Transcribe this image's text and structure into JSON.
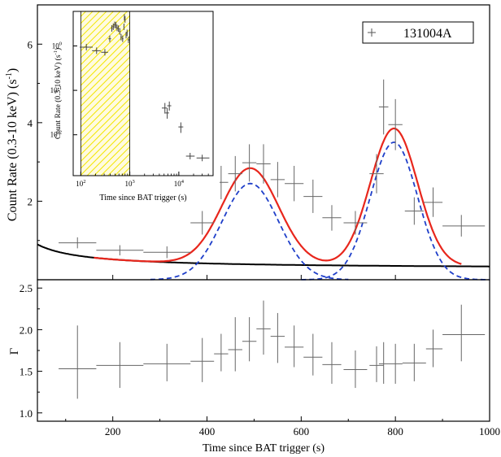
{
  "chart_data": [
    {
      "type": "line",
      "panel": "top",
      "ylabel": "Count Rate (0.3-10 keV) (s",
      "ylabel_sup": "-1",
      "ylabel_end": ")",
      "xlim": [
        40,
        1000
      ],
      "ylim": [
        0,
        7
      ],
      "yticks": [
        2,
        4,
        6
      ],
      "ytick_labels": [
        "2",
        "4",
        "6"
      ],
      "legend": {
        "label": "131004A",
        "marker": "+",
        "placement": "top-right"
      },
      "data_points": [
        {
          "x": 125,
          "y": 0.94,
          "xerr": [
            85,
            165
          ],
          "yerr": [
            0.8,
            1.08
          ]
        },
        {
          "x": 215,
          "y": 0.75,
          "xerr": [
            165,
            265
          ],
          "yerr": [
            0.62,
            0.88
          ]
        },
        {
          "x": 315,
          "y": 0.7,
          "xerr": [
            265,
            365
          ],
          "yerr": [
            0.55,
            0.85
          ]
        },
        {
          "x": 390,
          "y": 1.45,
          "xerr": [
            365,
            415
          ],
          "yerr": [
            1.15,
            1.75
          ]
        },
        {
          "x": 430,
          "y": 2.48,
          "xerr": [
            415,
            445
          ],
          "yerr": [
            2.05,
            2.9
          ]
        },
        {
          "x": 460,
          "y": 2.7,
          "xerr": [
            445,
            475
          ],
          "yerr": [
            2.25,
            3.15
          ]
        },
        {
          "x": 490,
          "y": 2.98,
          "xerr": [
            475,
            505
          ],
          "yerr": [
            2.5,
            3.45
          ]
        },
        {
          "x": 520,
          "y": 2.95,
          "xerr": [
            505,
            535
          ],
          "yerr": [
            2.45,
            3.45
          ]
        },
        {
          "x": 550,
          "y": 2.55,
          "xerr": [
            535,
            565
          ],
          "yerr": [
            2.1,
            3.0
          ]
        },
        {
          "x": 585,
          "y": 2.45,
          "xerr": [
            565,
            605
          ],
          "yerr": [
            2.0,
            2.9
          ]
        },
        {
          "x": 625,
          "y": 2.12,
          "xerr": [
            605,
            645
          ],
          "yerr": [
            1.7,
            2.55
          ]
        },
        {
          "x": 665,
          "y": 1.58,
          "xerr": [
            645,
            685
          ],
          "yerr": [
            1.25,
            1.9
          ]
        },
        {
          "x": 715,
          "y": 1.45,
          "xerr": [
            690,
            740
          ],
          "yerr": [
            1.15,
            1.75
          ]
        },
        {
          "x": 760,
          "y": 2.7,
          "xerr": [
            745,
            775
          ],
          "yerr": [
            2.2,
            3.2
          ]
        },
        {
          "x": 775,
          "y": 4.4,
          "xerr": [
            765,
            785
          ],
          "yerr": [
            3.7,
            5.1
          ]
        },
        {
          "x": 800,
          "y": 3.95,
          "xerr": [
            785,
            815
          ],
          "yerr": [
            3.3,
            4.6
          ]
        },
        {
          "x": 840,
          "y": 1.75,
          "xerr": [
            820,
            860
          ],
          "yerr": [
            1.4,
            2.1
          ]
        },
        {
          "x": 880,
          "y": 1.97,
          "xerr": [
            860,
            900
          ],
          "yerr": [
            1.6,
            2.35
          ]
        },
        {
          "x": 940,
          "y": 1.37,
          "xerr": [
            900,
            990
          ],
          "yerr": [
            1.1,
            1.65
          ]
        }
      ],
      "model": {
        "powerlaw": {
          "A": 0.28,
          "k": 0.62,
          "t0": 40,
          "p": 0.5,
          "color": "#000000"
        },
        "gaussians": [
          {
            "amp": 2.45,
            "mu": 492,
            "sigma": 60
          },
          {
            "amp": 3.5,
            "mu": 797,
            "sigma": 50
          }
        ],
        "total_color": "#e8261c",
        "component_color": "#1f3fc9",
        "total_xrange": [
          160,
          940
        ],
        "component_xrange": [
          280,
          1000
        ]
      }
    },
    {
      "type": "scatter",
      "panel": "bottom",
      "ylabel": "Γ",
      "xlabel": "Time since BAT trigger (s)",
      "xlim": [
        40,
        1000
      ],
      "ylim": [
        0.9,
        2.6
      ],
      "xticks": [
        200,
        400,
        600,
        800,
        1000
      ],
      "xtick_labels": [
        "200",
        "400",
        "600",
        "800",
        "1000"
      ],
      "yticks": [
        1.0,
        1.5,
        2.0,
        2.5
      ],
      "ytick_labels": [
        "1.0",
        "1.5",
        "2.0",
        "2.5"
      ],
      "data_points": [
        {
          "x": 125,
          "y": 1.53,
          "xerr": [
            85,
            165
          ],
          "yerr": [
            1.17,
            2.05
          ]
        },
        {
          "x": 215,
          "y": 1.57,
          "xerr": [
            165,
            265
          ],
          "yerr": [
            1.3,
            1.85
          ]
        },
        {
          "x": 315,
          "y": 1.59,
          "xerr": [
            265,
            365
          ],
          "yerr": [
            1.38,
            1.83
          ]
        },
        {
          "x": 390,
          "y": 1.62,
          "xerr": [
            365,
            415
          ],
          "yerr": [
            1.37,
            1.9
          ]
        },
        {
          "x": 430,
          "y": 1.71,
          "xerr": [
            415,
            445
          ],
          "yerr": [
            1.5,
            1.95
          ]
        },
        {
          "x": 460,
          "y": 1.76,
          "xerr": [
            445,
            475
          ],
          "yerr": [
            1.5,
            2.15
          ]
        },
        {
          "x": 490,
          "y": 1.86,
          "xerr": [
            475,
            505
          ],
          "yerr": [
            1.62,
            2.15
          ]
        },
        {
          "x": 520,
          "y": 2.01,
          "xerr": [
            505,
            535
          ],
          "yerr": [
            1.7,
            2.35
          ]
        },
        {
          "x": 550,
          "y": 1.92,
          "xerr": [
            535,
            565
          ],
          "yerr": [
            1.6,
            2.2
          ]
        },
        {
          "x": 585,
          "y": 1.79,
          "xerr": [
            565,
            605
          ],
          "yerr": [
            1.55,
            2.05
          ]
        },
        {
          "x": 625,
          "y": 1.67,
          "xerr": [
            605,
            645
          ],
          "yerr": [
            1.45,
            1.95
          ]
        },
        {
          "x": 665,
          "y": 1.58,
          "xerr": [
            645,
            685
          ],
          "yerr": [
            1.35,
            1.85
          ]
        },
        {
          "x": 715,
          "y": 1.52,
          "xerr": [
            690,
            740
          ],
          "yerr": [
            1.3,
            1.75
          ]
        },
        {
          "x": 760,
          "y": 1.57,
          "xerr": [
            745,
            775
          ],
          "yerr": [
            1.37,
            1.8
          ]
        },
        {
          "x": 775,
          "y": 1.59,
          "xerr": [
            765,
            785
          ],
          "yerr": [
            1.35,
            1.85
          ]
        },
        {
          "x": 800,
          "y": 1.59,
          "xerr": [
            785,
            815
          ],
          "yerr": [
            1.35,
            1.83
          ]
        },
        {
          "x": 840,
          "y": 1.6,
          "xerr": [
            815,
            865
          ],
          "yerr": [
            1.38,
            1.83
          ]
        },
        {
          "x": 880,
          "y": 1.77,
          "xerr": [
            865,
            900
          ],
          "yerr": [
            1.55,
            2.0
          ]
        },
        {
          "x": 940,
          "y": 1.94,
          "xerr": [
            900,
            990
          ],
          "yerr": [
            1.62,
            2.3
          ]
        }
      ]
    },
    {
      "type": "scatter",
      "panel": "inset",
      "xlabel": "Time since BAT trigger (s)",
      "ylabel": "Count Rate (0.3-10 keV) (s",
      "ylabel_sup": "-1",
      "ylabel_end": ")",
      "xscale": "log",
      "yscale": "log",
      "xlim": [
        70,
        50000
      ],
      "ylim": [
        0.0012,
        6
      ],
      "xtick_base": "10",
      "xtick_exps": [
        "2",
        "3",
        "4"
      ],
      "ytick_base": "10",
      "ytick_exps": [
        "0",
        "-1",
        "-2"
      ],
      "shaded_region": {
        "x": [
          100,
          1000
        ],
        "color": "#f2e600"
      },
      "data_points": [
        {
          "x": 130,
          "y": 0.94,
          "xerr": [
            95,
            175
          ]
        },
        {
          "x": 210,
          "y": 0.78,
          "xerr": [
            170,
            255
          ]
        },
        {
          "x": 310,
          "y": 0.72,
          "xerr": [
            260,
            360
          ]
        },
        {
          "x": 390,
          "y": 1.45,
          "xerr": [
            365,
            415
          ]
        },
        {
          "x": 430,
          "y": 2.48,
          "xerr": [
            415,
            445
          ]
        },
        {
          "x": 460,
          "y": 2.7,
          "xerr": [
            445,
            475
          ]
        },
        {
          "x": 490,
          "y": 2.98,
          "xerr": [
            475,
            505
          ]
        },
        {
          "x": 520,
          "y": 2.95,
          "xerr": [
            505,
            535
          ]
        },
        {
          "x": 550,
          "y": 2.55,
          "xerr": [
            535,
            565
          ]
        },
        {
          "x": 585,
          "y": 2.45,
          "xerr": [
            565,
            605
          ]
        },
        {
          "x": 625,
          "y": 2.12,
          "xerr": [
            605,
            645
          ]
        },
        {
          "x": 665,
          "y": 1.58,
          "xerr": [
            645,
            685
          ]
        },
        {
          "x": 715,
          "y": 1.45,
          "xerr": [
            690,
            740
          ]
        },
        {
          "x": 760,
          "y": 2.7,
          "xerr": [
            745,
            775
          ]
        },
        {
          "x": 775,
          "y": 4.4,
          "xerr": [
            765,
            785
          ]
        },
        {
          "x": 800,
          "y": 3.95,
          "xerr": [
            785,
            815
          ]
        },
        {
          "x": 840,
          "y": 1.75,
          "xerr": [
            820,
            860
          ]
        },
        {
          "x": 880,
          "y": 1.97,
          "xerr": [
            860,
            900
          ]
        },
        {
          "x": 940,
          "y": 1.37,
          "xerr": [
            900,
            990
          ]
        },
        {
          "x": 5200,
          "y": 0.04,
          "xerr": [
            4500,
            5700
          ],
          "yerr": [
            0.03,
            0.052
          ]
        },
        {
          "x": 5800,
          "y": 0.031,
          "xerr": [
            5300,
            6300
          ],
          "yerr": [
            0.023,
            0.04
          ]
        },
        {
          "x": 6400,
          "y": 0.045,
          "xerr": [
            5800,
            7000
          ],
          "yerr": [
            0.035,
            0.056
          ]
        },
        {
          "x": 11000,
          "y": 0.015,
          "xerr": [
            9800,
            12300
          ],
          "yerr": [
            0.011,
            0.019
          ]
        },
        {
          "x": 17000,
          "y": 0.0033,
          "xerr": [
            14000,
            21000
          ]
        },
        {
          "x": 30000,
          "y": 0.003,
          "xerr": [
            23000,
            42000
          ]
        }
      ]
    }
  ]
}
